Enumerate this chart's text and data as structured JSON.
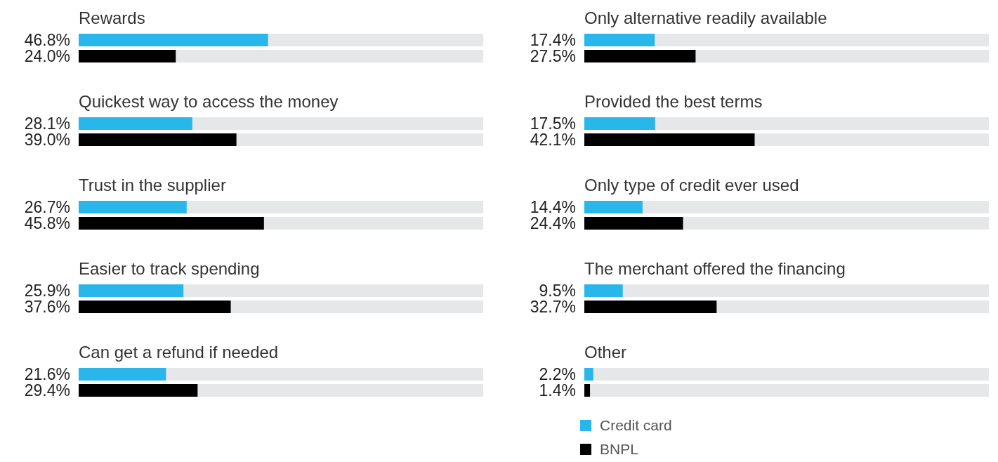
{
  "chart_data": [
    {
      "type": "bar",
      "orientation": "horizontal",
      "categories": [
        "Rewards",
        "Quickest way to access the money",
        "Trust in the supplier",
        "Easier to track spending",
        "Can get a refund if needed"
      ],
      "series": [
        {
          "color": "#29b6ea",
          "values": [
            46.8,
            28.1,
            26.7,
            25.9,
            21.6
          ],
          "value_labels": [
            "46.8%",
            "28.1%",
            "26.7%",
            "25.9%",
            "21.6%"
          ]
        },
        {
          "color": "#000000",
          "values": [
            24.0,
            39.0,
            45.8,
            37.6,
            29.4
          ],
          "value_labels": [
            "24.0%",
            "39.0%",
            "45.8%",
            "37.6%",
            "29.4%"
          ]
        }
      ],
      "xlim": [
        0,
        100
      ],
      "tick_labels": false
    },
    {
      "type": "bar",
      "orientation": "horizontal",
      "categories": [
        "Only alternative readily available",
        "Provided the best terms",
        "Only type of credit ever used",
        "The merchant offered the financing",
        "Other"
      ],
      "series": [
        {
          "name": "Credit card",
          "color": "#29b6ea",
          "values": [
            17.4,
            17.5,
            14.4,
            9.5,
            2.2
          ],
          "value_labels": [
            "17.4%",
            "17.5%",
            "14.4%",
            "9.5%",
            "2.2%"
          ]
        },
        {
          "name": "BNPL",
          "color": "#000000",
          "values": [
            27.5,
            42.1,
            24.4,
            32.7,
            1.4
          ],
          "value_labels": [
            "27.5%",
            "42.1%",
            "24.4%",
            "32.7%",
            "1.4%"
          ]
        }
      ],
      "xlim": [
        0,
        100
      ],
      "tick_labels": false,
      "legend": "bottom"
    }
  ]
}
